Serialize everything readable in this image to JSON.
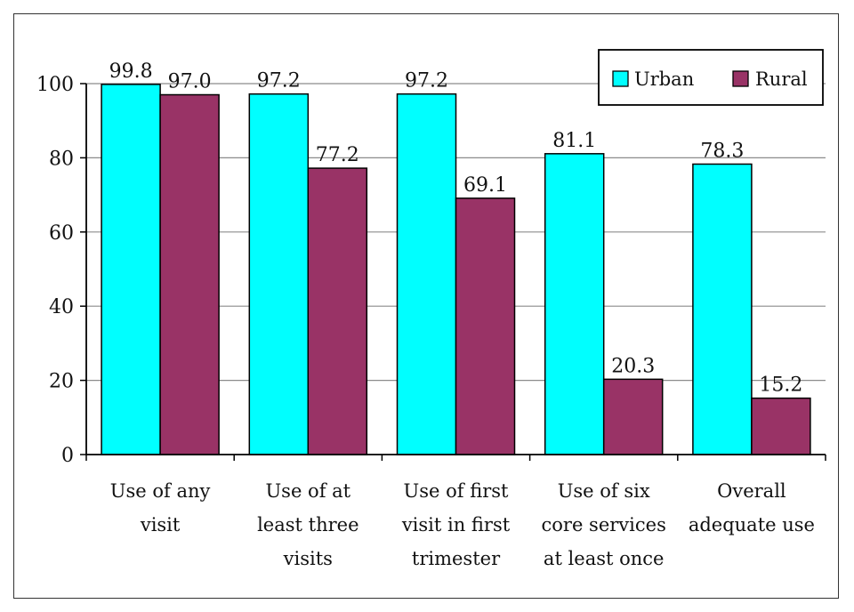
{
  "chart_data": {
    "type": "bar",
    "categories": [
      [
        "Use of any",
        "visit"
      ],
      [
        "Use of at",
        "least three",
        "visits"
      ],
      [
        "Use of first",
        "visit in first",
        "trimester"
      ],
      [
        "Use of six",
        "core services",
        "at least once"
      ],
      [
        "Overall",
        "adequate use"
      ]
    ],
    "series": [
      {
        "name": "Urban",
        "color": "#00FFFF",
        "values": [
          99.8,
          97.2,
          97.2,
          81.1,
          78.3
        ],
        "labels": [
          "99.8",
          "97.2",
          "97.2",
          "81.1",
          "78.3"
        ]
      },
      {
        "name": "Rural",
        "color": "#993366",
        "values": [
          97.0,
          77.2,
          69.1,
          20.3,
          15.2
        ],
        "labels": [
          "97.0",
          "77.2",
          "69.1",
          "20.3",
          "15.2"
        ]
      }
    ],
    "yticks": [
      "0",
      "20",
      "40",
      "60",
      "80",
      "100"
    ],
    "ylim": [
      0,
      100
    ],
    "grid": true,
    "legend": "top-right"
  }
}
